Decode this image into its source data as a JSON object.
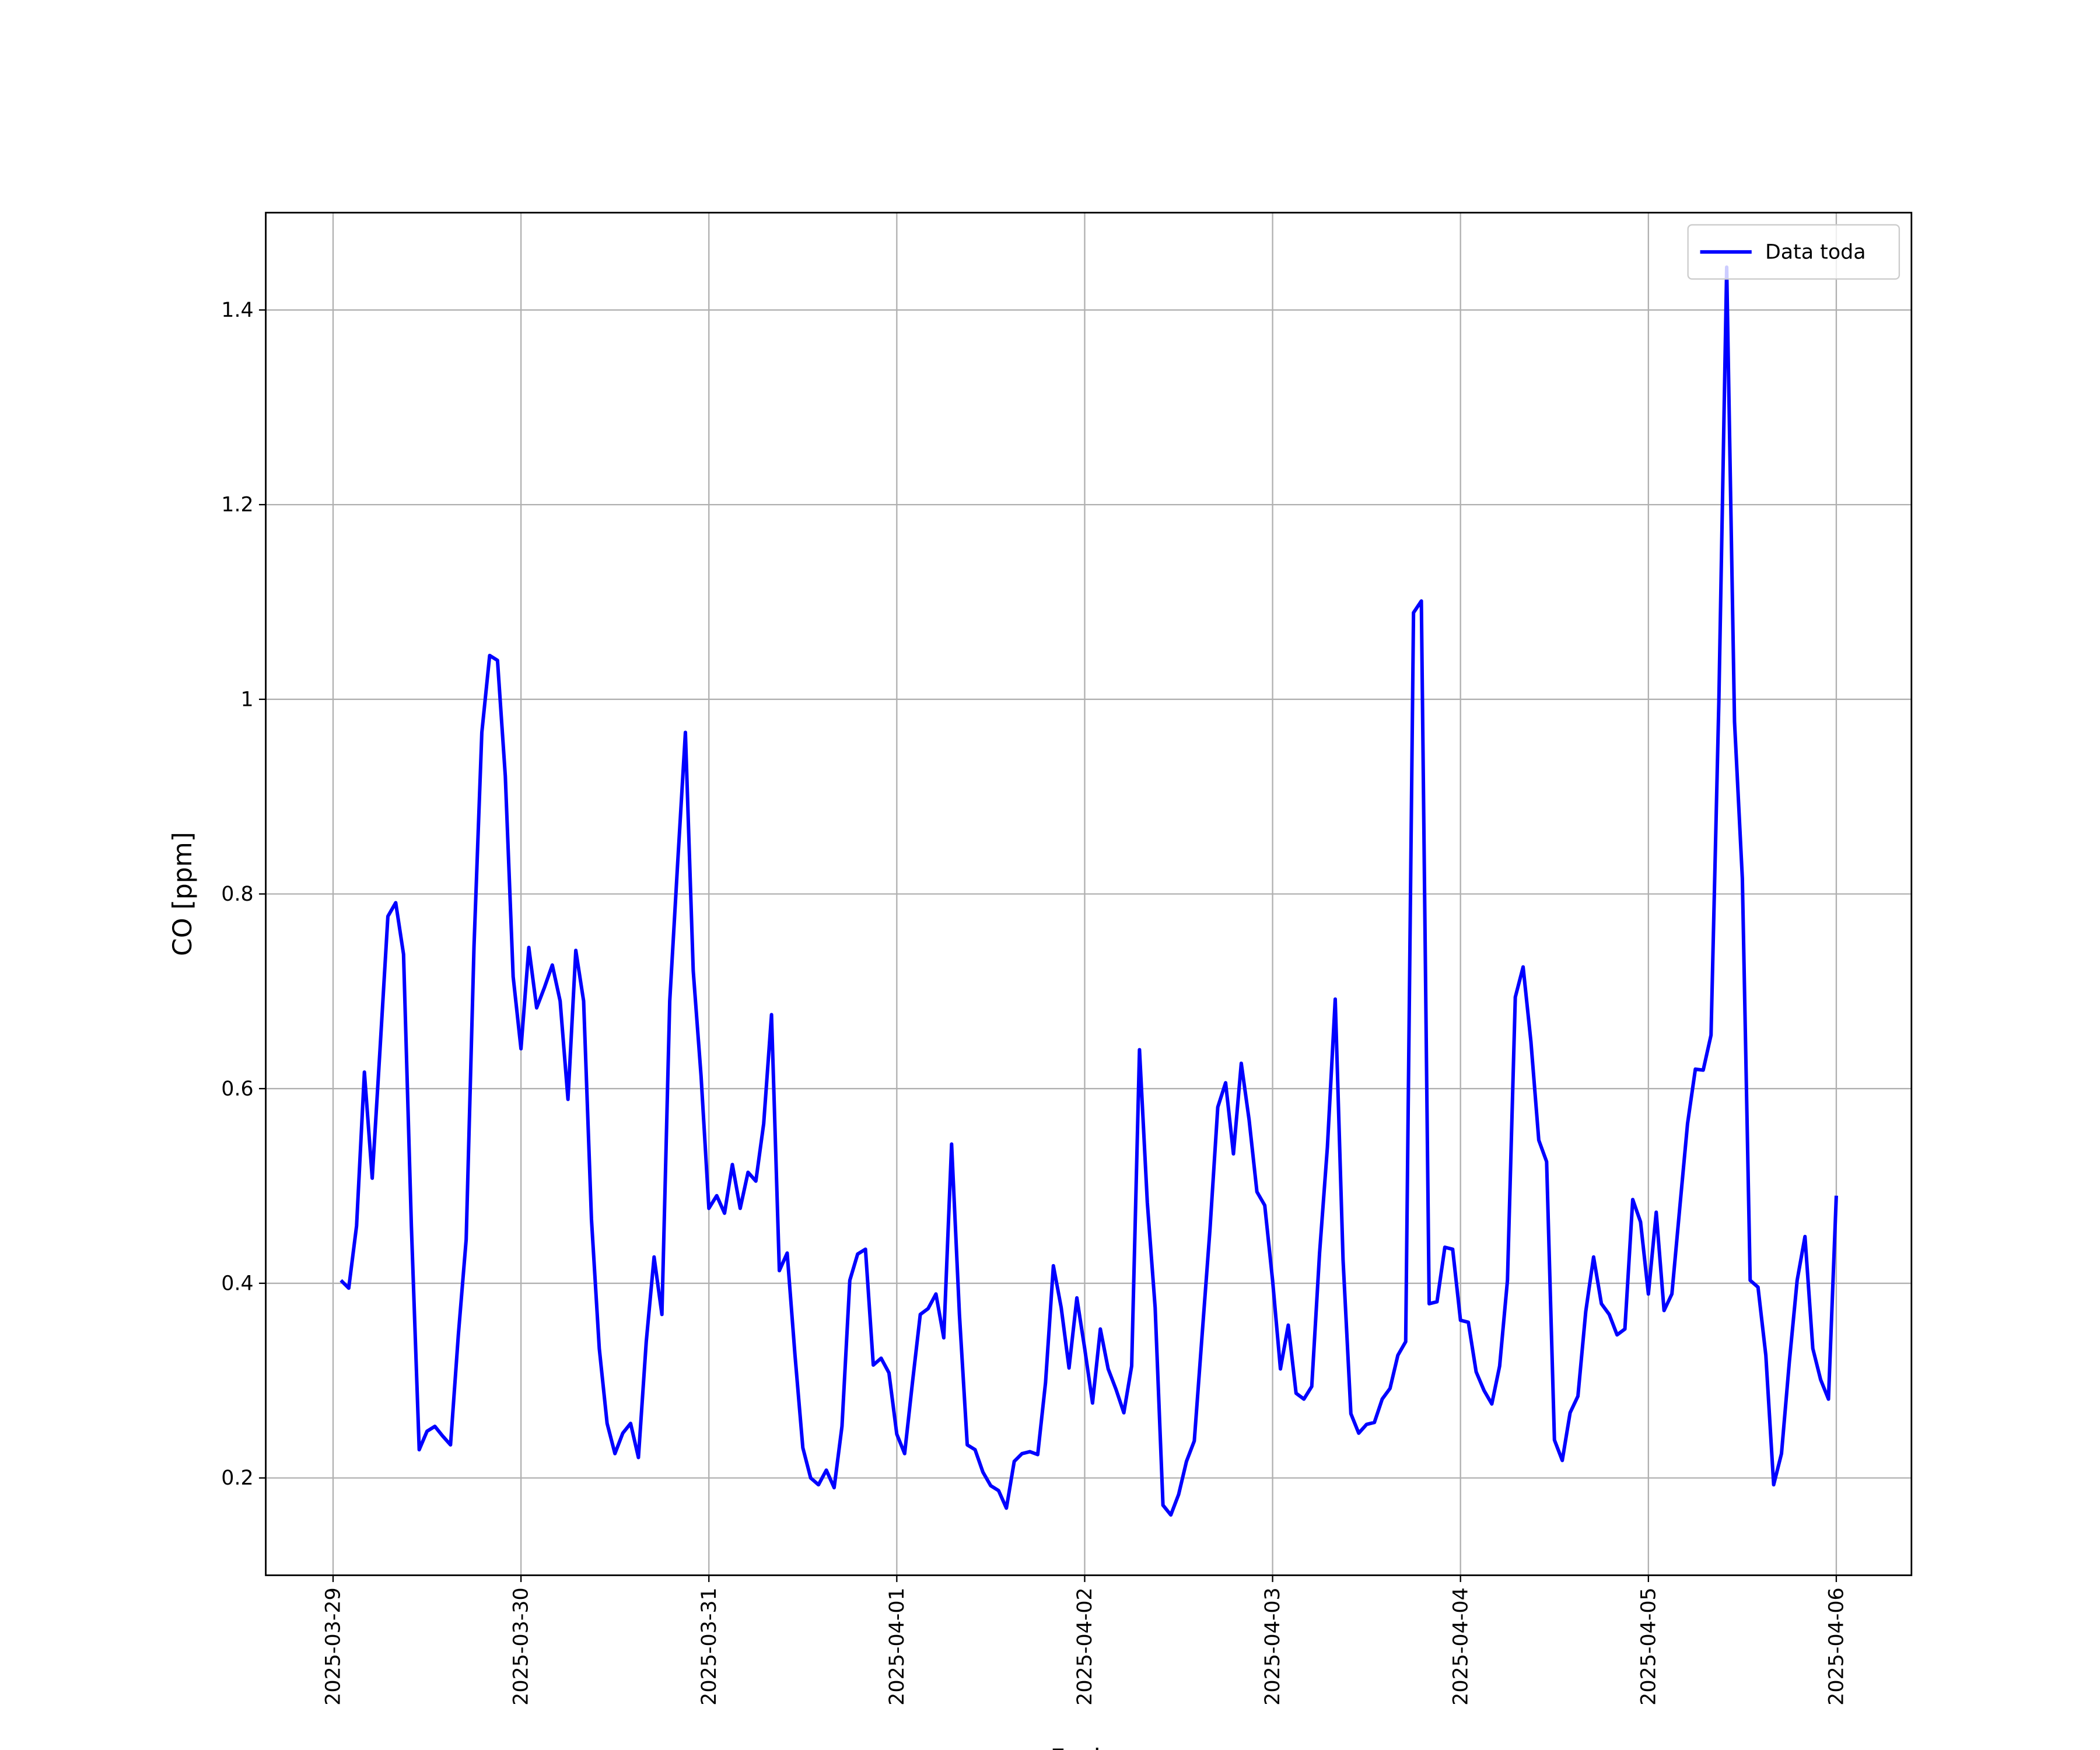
{
  "chart_data": {
    "type": "line",
    "xlabel": "Fecha",
    "ylabel": "CO [ppm]",
    "xlim": [
      "2025-03-28 15:24",
      "2025-04-06 09:36"
    ],
    "xticks": [
      "2025-03-29",
      "2025-03-30",
      "2025-03-31",
      "2025-04-01",
      "2025-04-02",
      "2025-04-03",
      "2025-04-04",
      "2025-04-05",
      "2025-04-06"
    ],
    "ylim": [
      0.1,
      1.5
    ],
    "yticks": [
      0.2,
      0.4,
      0.6,
      0.8,
      1.0,
      1.2,
      1.4
    ],
    "grid": true,
    "legend": "upper right",
    "x": [
      "2025-03-29 01:00",
      "2025-03-29 02:00",
      "2025-03-29 03:00",
      "2025-03-29 04:00",
      "2025-03-29 05:00",
      "2025-03-29 06:00",
      "2025-03-29 07:00",
      "2025-03-29 08:00",
      "2025-03-29 09:00",
      "2025-03-29 10:00",
      "2025-03-29 11:00",
      "2025-03-29 12:00",
      "2025-03-29 13:00",
      "2025-03-29 14:00",
      "2025-03-29 15:00",
      "2025-03-29 16:00",
      "2025-03-29 17:00",
      "2025-03-29 18:00",
      "2025-03-29 19:00",
      "2025-03-29 20:00",
      "2025-03-29 21:00",
      "2025-03-29 22:00",
      "2025-03-29 23:00",
      "2025-03-30 00:00",
      "2025-03-30 01:00",
      "2025-03-30 02:00",
      "2025-03-30 03:00",
      "2025-03-30 04:00",
      "2025-03-30 05:00",
      "2025-03-30 06:00",
      "2025-03-30 07:00",
      "2025-03-30 08:00",
      "2025-03-30 09:00",
      "2025-03-30 10:00",
      "2025-03-30 11:00",
      "2025-03-30 12:00",
      "2025-03-30 13:00",
      "2025-03-30 14:00",
      "2025-03-30 15:00",
      "2025-03-30 16:00",
      "2025-03-30 17:00",
      "2025-03-30 18:00",
      "2025-03-30 19:00",
      "2025-03-30 20:00",
      "2025-03-30 21:00",
      "2025-03-30 22:00",
      "2025-03-30 23:00",
      "2025-03-31 00:00",
      "2025-03-31 01:00",
      "2025-03-31 02:00",
      "2025-03-31 03:00",
      "2025-03-31 04:00",
      "2025-03-31 05:00",
      "2025-03-31 06:00",
      "2025-03-31 07:00",
      "2025-03-31 08:00",
      "2025-03-31 09:00",
      "2025-03-31 10:00",
      "2025-03-31 11:00",
      "2025-03-31 12:00",
      "2025-03-31 13:00",
      "2025-03-31 14:00",
      "2025-03-31 15:00",
      "2025-03-31 16:00",
      "2025-03-31 17:00",
      "2025-03-31 18:00",
      "2025-03-31 19:00",
      "2025-03-31 20:00",
      "2025-03-31 21:00",
      "2025-03-31 22:00",
      "2025-03-31 23:00",
      "2025-04-01 00:00",
      "2025-04-01 01:00",
      "2025-04-01 02:00",
      "2025-04-01 03:00",
      "2025-04-01 04:00",
      "2025-04-01 05:00",
      "2025-04-01 06:00",
      "2025-04-01 07:00",
      "2025-04-01 08:00",
      "2025-04-01 09:00",
      "2025-04-01 10:00",
      "2025-04-01 11:00",
      "2025-04-01 12:00",
      "2025-04-01 13:00",
      "2025-04-01 14:00",
      "2025-04-01 15:00",
      "2025-04-01 16:00",
      "2025-04-01 17:00",
      "2025-04-01 18:00",
      "2025-04-01 19:00",
      "2025-04-01 20:00",
      "2025-04-01 21:00",
      "2025-04-01 22:00",
      "2025-04-01 23:00",
      "2025-04-02 00:00",
      "2025-04-02 01:00",
      "2025-04-02 02:00",
      "2025-04-02 03:00",
      "2025-04-02 04:00",
      "2025-04-02 05:00",
      "2025-04-02 06:00",
      "2025-04-02 07:00",
      "2025-04-02 08:00",
      "2025-04-02 09:00",
      "2025-04-02 10:00",
      "2025-04-02 11:00",
      "2025-04-02 12:00",
      "2025-04-02 13:00",
      "2025-04-02 14:00",
      "2025-04-02 15:00",
      "2025-04-02 16:00",
      "2025-04-02 17:00",
      "2025-04-02 18:00",
      "2025-04-02 19:00",
      "2025-04-02 20:00",
      "2025-04-02 21:00",
      "2025-04-02 22:00",
      "2025-04-02 23:00",
      "2025-04-03 00:00",
      "2025-04-03 01:00",
      "2025-04-03 02:00",
      "2025-04-03 03:00",
      "2025-04-03 04:00",
      "2025-04-03 05:00",
      "2025-04-03 06:00",
      "2025-04-03 07:00",
      "2025-04-03 08:00",
      "2025-04-03 09:00",
      "2025-04-03 10:00",
      "2025-04-03 11:00",
      "2025-04-03 12:00",
      "2025-04-03 13:00",
      "2025-04-03 14:00",
      "2025-04-03 15:00",
      "2025-04-03 16:00",
      "2025-04-03 17:00",
      "2025-04-03 18:00",
      "2025-04-03 19:00",
      "2025-04-03 20:00",
      "2025-04-03 21:00",
      "2025-04-03 22:00",
      "2025-04-03 23:00",
      "2025-04-04 00:00",
      "2025-04-04 01:00",
      "2025-04-04 02:00",
      "2025-04-04 03:00",
      "2025-04-04 04:00",
      "2025-04-04 05:00",
      "2025-04-04 06:00",
      "2025-04-04 07:00",
      "2025-04-04 08:00",
      "2025-04-04 09:00",
      "2025-04-04 10:00",
      "2025-04-04 11:00",
      "2025-04-04 12:00",
      "2025-04-04 13:00",
      "2025-04-04 14:00",
      "2025-04-04 15:00",
      "2025-04-04 16:00",
      "2025-04-04 17:00",
      "2025-04-04 18:00",
      "2025-04-04 19:00",
      "2025-04-04 20:00",
      "2025-04-04 21:00",
      "2025-04-04 22:00",
      "2025-04-04 23:00",
      "2025-04-05 00:00",
      "2025-04-05 01:00",
      "2025-04-05 02:00",
      "2025-04-05 03:00",
      "2025-04-05 04:00",
      "2025-04-05 05:00",
      "2025-04-05 06:00",
      "2025-04-05 07:00",
      "2025-04-05 08:00",
      "2025-04-05 09:00",
      "2025-04-05 10:00",
      "2025-04-05 11:00",
      "2025-04-05 12:00",
      "2025-04-05 13:00",
      "2025-04-05 14:00",
      "2025-04-05 15:00",
      "2025-04-05 16:00",
      "2025-04-05 17:00",
      "2025-04-05 18:00",
      "2025-04-05 19:00",
      "2025-04-05 20:00",
      "2025-04-05 21:00",
      "2025-04-05 22:00",
      "2025-04-05 23:00",
      "2025-04-06 00:00"
    ],
    "series": [
      {
        "name": "Data toda",
        "color": "#0000ff",
        "values": [
          0.403,
          0.395,
          0.459,
          0.617,
          0.508,
          0.641,
          0.777,
          0.791,
          0.738,
          0.459,
          0.229,
          0.248,
          0.253,
          0.243,
          0.234,
          0.347,
          0.445,
          0.746,
          0.966,
          1.045,
          1.04,
          0.921,
          0.715,
          0.641,
          0.745,
          0.683,
          0.704,
          0.727,
          0.69,
          0.589,
          0.742,
          0.69,
          0.466,
          0.333,
          0.256,
          0.225,
          0.246,
          0.256,
          0.221,
          0.34,
          0.427,
          0.368,
          0.69,
          0.83,
          0.966,
          0.721,
          0.613,
          0.477,
          0.49,
          0.472,
          0.522,
          0.477,
          0.514,
          0.505,
          0.564,
          0.676,
          0.413,
          0.431,
          0.326,
          0.231,
          0.2,
          0.193,
          0.208,
          0.19,
          0.253,
          0.403,
          0.43,
          0.435,
          0.316,
          0.323,
          0.308,
          0.245,
          0.225,
          0.298,
          0.368,
          0.374,
          0.389,
          0.344,
          0.543,
          0.368,
          0.234,
          0.229,
          0.206,
          0.192,
          0.187,
          0.169,
          0.217,
          0.225,
          0.227,
          0.224,
          0.298,
          0.418,
          0.375,
          0.313,
          0.385,
          0.333,
          0.277,
          0.353,
          0.312,
          0.291,
          0.267,
          0.315,
          0.64,
          0.483,
          0.375,
          0.172,
          0.162,
          0.183,
          0.217,
          0.238,
          0.347,
          0.455,
          0.581,
          0.606,
          0.533,
          0.626,
          0.568,
          0.494,
          0.48,
          0.403,
          0.312,
          0.357,
          0.287,
          0.281,
          0.294,
          0.431,
          0.54,
          0.692,
          0.424,
          0.266,
          0.246,
          0.255,
          0.257,
          0.281,
          0.292,
          0.326,
          0.34,
          1.089,
          1.101,
          0.379,
          0.381,
          0.437,
          0.435,
          0.362,
          0.36,
          0.309,
          0.29,
          0.276,
          0.315,
          0.403,
          0.694,
          0.725,
          0.648,
          0.547,
          0.525,
          0.239,
          0.218,
          0.267,
          0.284,
          0.371,
          0.427,
          0.379,
          0.368,
          0.347,
          0.353,
          0.486,
          0.463,
          0.389,
          0.473,
          0.372,
          0.389,
          0.477,
          0.564,
          0.62,
          0.619,
          0.655,
          0.998,
          1.444,
          0.977,
          0.816,
          0.403,
          0.396,
          0.326,
          0.193,
          0.225,
          0.319,
          0.403,
          0.448,
          0.333,
          0.301,
          0.281,
          0.49
        ]
      }
    ]
  }
}
